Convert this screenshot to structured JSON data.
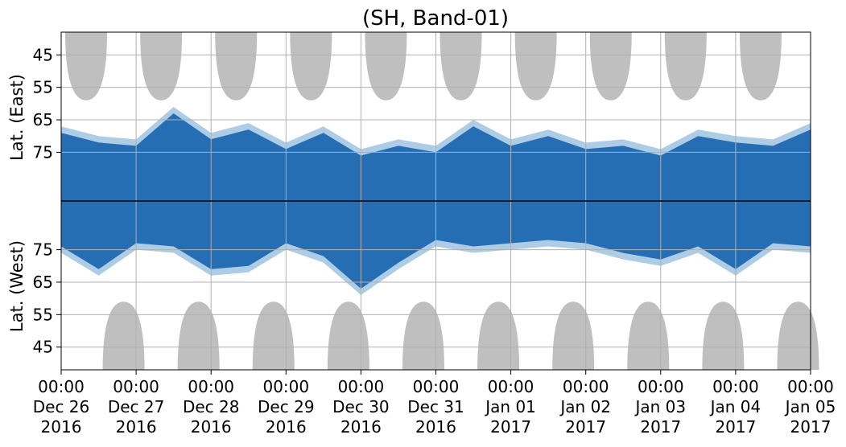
{
  "chart_data": {
    "type": "heatmap",
    "title": "(SH, Band-01)",
    "ylabel_top": "Lat. (East)",
    "ylabel_bottom": "Lat. (West)",
    "x_ticks": [
      {
        "time": "00:00",
        "day": "Dec 26",
        "year": "2016"
      },
      {
        "time": "00:00",
        "day": "Dec 27",
        "year": "2016"
      },
      {
        "time": "00:00",
        "day": "Dec 28",
        "year": "2016"
      },
      {
        "time": "00:00",
        "day": "Dec 29",
        "year": "2016"
      },
      {
        "time": "00:00",
        "day": "Dec 30",
        "year": "2016"
      },
      {
        "time": "00:00",
        "day": "Dec 31",
        "year": "2016"
      },
      {
        "time": "00:00",
        "day": "Jan 01",
        "year": "2017"
      },
      {
        "time": "00:00",
        "day": "Jan 02",
        "year": "2017"
      },
      {
        "time": "00:00",
        "day": "Jan 03",
        "year": "2017"
      },
      {
        "time": "00:00",
        "day": "Jan 04",
        "year": "2017"
      },
      {
        "time": "00:00",
        "day": "Jan 05",
        "year": "2017"
      }
    ],
    "xlim": [
      "2016-12-26 00:00",
      "2017-01-05 00:00"
    ],
    "y_ticks_east": [
      "45",
      "55",
      "65",
      "75"
    ],
    "y_ticks_west": [
      "75",
      "65",
      "55",
      "45"
    ],
    "ylim_lat": [
      38,
      90
    ],
    "grid": true,
    "colors": {
      "dense": "#1f68b1",
      "sparse": "#6aa3d1",
      "sunlit": "#bfbfbf",
      "grid": "#b0b0b0",
      "divider": "#000000"
    },
    "east_hemisphere": {
      "sunlit_peak_times": [
        "2016-12-26 08:00",
        "2016-12-27 08:00",
        "2016-12-28 08:00",
        "2016-12-29 08:00",
        "2016-12-30 08:00",
        "2016-12-31 08:00",
        "2017-01-01 08:00",
        "2017-01-02 08:00",
        "2017-01-03 08:00",
        "2017-01-04 08:00"
      ],
      "sunlit_min_lat": 59,
      "cover_profile": [
        {
          "t": "2016-12-26 00:00",
          "lat": 69
        },
        {
          "t": "2016-12-26 12:00",
          "lat": 72
        },
        {
          "t": "2016-12-27 00:00",
          "lat": 73
        },
        {
          "t": "2016-12-27 12:00",
          "lat": 63
        },
        {
          "t": "2016-12-28 00:00",
          "lat": 71
        },
        {
          "t": "2016-12-28 12:00",
          "lat": 68
        },
        {
          "t": "2016-12-29 00:00",
          "lat": 74
        },
        {
          "t": "2016-12-29 12:00",
          "lat": 69
        },
        {
          "t": "2016-12-30 00:00",
          "lat": 76
        },
        {
          "t": "2016-12-30 12:00",
          "lat": 73
        },
        {
          "t": "2016-12-31 00:00",
          "lat": 75
        },
        {
          "t": "2016-12-31 12:00",
          "lat": 67
        },
        {
          "t": "2017-01-01 00:00",
          "lat": 73
        },
        {
          "t": "2017-01-01 12:00",
          "lat": 70
        },
        {
          "t": "2017-01-02 00:00",
          "lat": 74
        },
        {
          "t": "2017-01-02 12:00",
          "lat": 73
        },
        {
          "t": "2017-01-03 00:00",
          "lat": 76
        },
        {
          "t": "2017-01-03 12:00",
          "lat": 70
        },
        {
          "t": "2017-01-04 00:00",
          "lat": 72
        },
        {
          "t": "2017-01-04 12:00",
          "lat": 73
        },
        {
          "t": "2017-01-05 00:00",
          "lat": 68
        }
      ]
    },
    "west_hemisphere": {
      "sunlit_peak_times": [
        "2016-12-26 20:00",
        "2016-12-27 20:00",
        "2016-12-28 20:00",
        "2016-12-29 20:00",
        "2016-12-30 20:00",
        "2016-12-31 20:00",
        "2017-01-01 20:00",
        "2017-01-02 20:00",
        "2017-01-03 20:00",
        "2017-01-04 20:00"
      ],
      "sunlit_min_lat": 59,
      "cover_profile": [
        {
          "t": "2016-12-26 00:00",
          "lat": 76
        },
        {
          "t": "2016-12-26 12:00",
          "lat": 69
        },
        {
          "t": "2016-12-27 00:00",
          "lat": 77
        },
        {
          "t": "2016-12-27 12:00",
          "lat": 76
        },
        {
          "t": "2016-12-28 00:00",
          "lat": 69
        },
        {
          "t": "2016-12-28 12:00",
          "lat": 70
        },
        {
          "t": "2016-12-29 00:00",
          "lat": 77
        },
        {
          "t": "2016-12-29 12:00",
          "lat": 73
        },
        {
          "t": "2016-12-30 00:00",
          "lat": 63
        },
        {
          "t": "2016-12-30 12:00",
          "lat": 71
        },
        {
          "t": "2016-12-31 00:00",
          "lat": 78
        },
        {
          "t": "2016-12-31 12:00",
          "lat": 76
        },
        {
          "t": "2017-01-01 00:00",
          "lat": 77
        },
        {
          "t": "2017-01-01 12:00",
          "lat": 78
        },
        {
          "t": "2017-01-02 00:00",
          "lat": 77
        },
        {
          "t": "2017-01-02 12:00",
          "lat": 74
        },
        {
          "t": "2017-01-03 00:00",
          "lat": 72
        },
        {
          "t": "2017-01-03 12:00",
          "lat": 76
        },
        {
          "t": "2017-01-04 00:00",
          "lat": 69
        },
        {
          "t": "2017-01-04 12:00",
          "lat": 77
        },
        {
          "t": "2017-01-05 00:00",
          "lat": 76
        }
      ]
    }
  }
}
